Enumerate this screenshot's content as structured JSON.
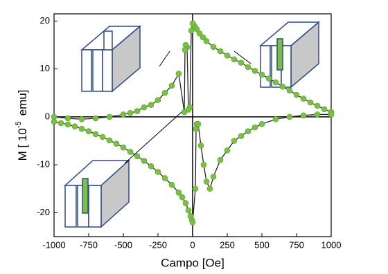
{
  "chart_data": {
    "type": "scatter",
    "x_label": "Campo [Oe]",
    "y_label_start": "M [ 10",
    "y_label_sup": "-5",
    "y_label_end": "emu]",
    "xlim": [
      -1000,
      1000
    ],
    "ylim": [
      -25,
      21.5
    ],
    "xticks": [
      -1000,
      -750,
      -500,
      -250,
      0,
      250,
      500,
      750,
      1000
    ],
    "yticks": [
      -20,
      -10,
      0,
      10,
      20
    ],
    "line_color": "#222222",
    "series": [
      {
        "color": "#7ac143",
        "x": [
          1000,
          950,
          900,
          850,
          800,
          750,
          700,
          650,
          600,
          550,
          500,
          450,
          400,
          350,
          300,
          250,
          200,
          150,
          100,
          75,
          50,
          30,
          15,
          5,
          0,
          -10,
          -20,
          -30,
          -40,
          -50,
          -55,
          -60,
          -100,
          -150,
          -200,
          -250,
          -300,
          -350,
          -400,
          -450,
          -500,
          -600,
          -700,
          -800,
          -900,
          -1000
        ],
        "values": [
          1,
          1.6,
          2.3,
          3,
          3.8,
          4.6,
          5.5,
          6.3,
          7.2,
          8,
          8.8,
          9.6,
          10.4,
          11.3,
          12,
          12.8,
          13.7,
          14.6,
          15.8,
          16.6,
          17.4,
          18.3,
          18.9,
          19.3,
          19.5,
          18,
          2,
          1.5,
          14.5,
          15,
          14,
          1,
          9,
          6.5,
          5,
          3.5,
          2.5,
          2,
          1.2,
          0.8,
          0.5,
          0,
          -0.3,
          -0.5,
          -0.3,
          0
        ]
      },
      {
        "color": "#7ac143",
        "x": [
          -1000,
          -950,
          -900,
          -850,
          -800,
          -750,
          -700,
          -650,
          -600,
          -550,
          -500,
          -450,
          -400,
          -350,
          -300,
          -250,
          -200,
          -150,
          -100,
          -75,
          -50,
          -30,
          -15,
          -5,
          0,
          20,
          25,
          30,
          40,
          60,
          80,
          100,
          125,
          150,
          200,
          250,
          300,
          350,
          400,
          450,
          500,
          600,
          700,
          800,
          900,
          1000
        ],
        "values": [
          -1,
          -1.3,
          -1.6,
          -2,
          -2.5,
          -3,
          -3.6,
          -4.2,
          -4.9,
          -5.6,
          -6.4,
          -7.3,
          -8.2,
          -9.2,
          -10.3,
          -11.5,
          -12.8,
          -14.2,
          -15.8,
          -16.8,
          -18,
          -19.5,
          -20.7,
          -21.5,
          -22,
          -15,
          -2.5,
          -1.5,
          -1.5,
          -6,
          -10,
          -13.5,
          -15,
          -12.5,
          -9,
          -7,
          -5,
          -4,
          -3,
          -2.2,
          -1.5,
          -0.5,
          0,
          0.3,
          0.5,
          0.5
        ]
      }
    ]
  }
}
